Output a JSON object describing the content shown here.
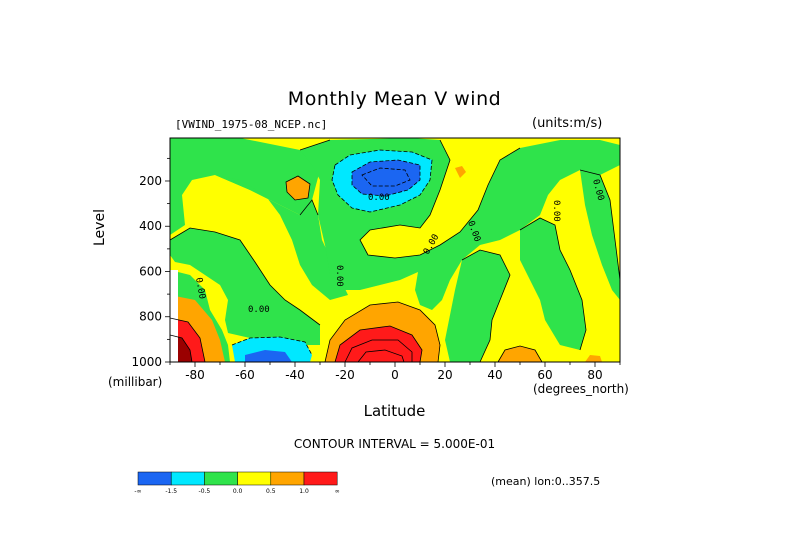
{
  "chart_data": {
    "type": "heatmap",
    "title": "Monthly Mean V wind",
    "subtitle_left": "[VWIND_1975-08_NCEP.nc]",
    "subtitle_right": "(units:m/s)",
    "xlabel": "Latitude",
    "xunits": "(degrees_north)",
    "ylabel": "Level",
    "yunits": "(millibar)",
    "xlim": [
      -90,
      90
    ],
    "ylim": [
      1000,
      10
    ],
    "x_ticks": [
      -80,
      -60,
      -40,
      -20,
      0,
      20,
      40,
      60,
      80
    ],
    "x_tick_labels": [
      "-80",
      "-60",
      "-40",
      "-20",
      "0",
      "20",
      "40",
      "60",
      "80"
    ],
    "y_ticks": [
      200,
      400,
      600,
      800,
      1000
    ],
    "y_tick_labels": [
      "200",
      "400",
      "600",
      "800",
      "1000"
    ],
    "contour_interval_text": "CONTOUR INTERVAL = 5.000E-01",
    "mean_info": "(mean) lon:0..357.5",
    "contour_labels": [
      "0.00",
      "0.00",
      "0.00",
      "0.00",
      "0.00",
      "0.00",
      "0.00",
      "0.00"
    ],
    "colorbar": {
      "colors": [
        "#1b66f2",
        "#00e8ff",
        "#2fe34b",
        "#ffff00",
        "#ffa500",
        "#ff1a1a"
      ],
      "tick_labels": [
        "-∞",
        "-1.5",
        "-0.5",
        "0.0",
        "0.5",
        "1.0",
        "∞"
      ]
    },
    "grid": false,
    "legend": "bottom-left"
  }
}
